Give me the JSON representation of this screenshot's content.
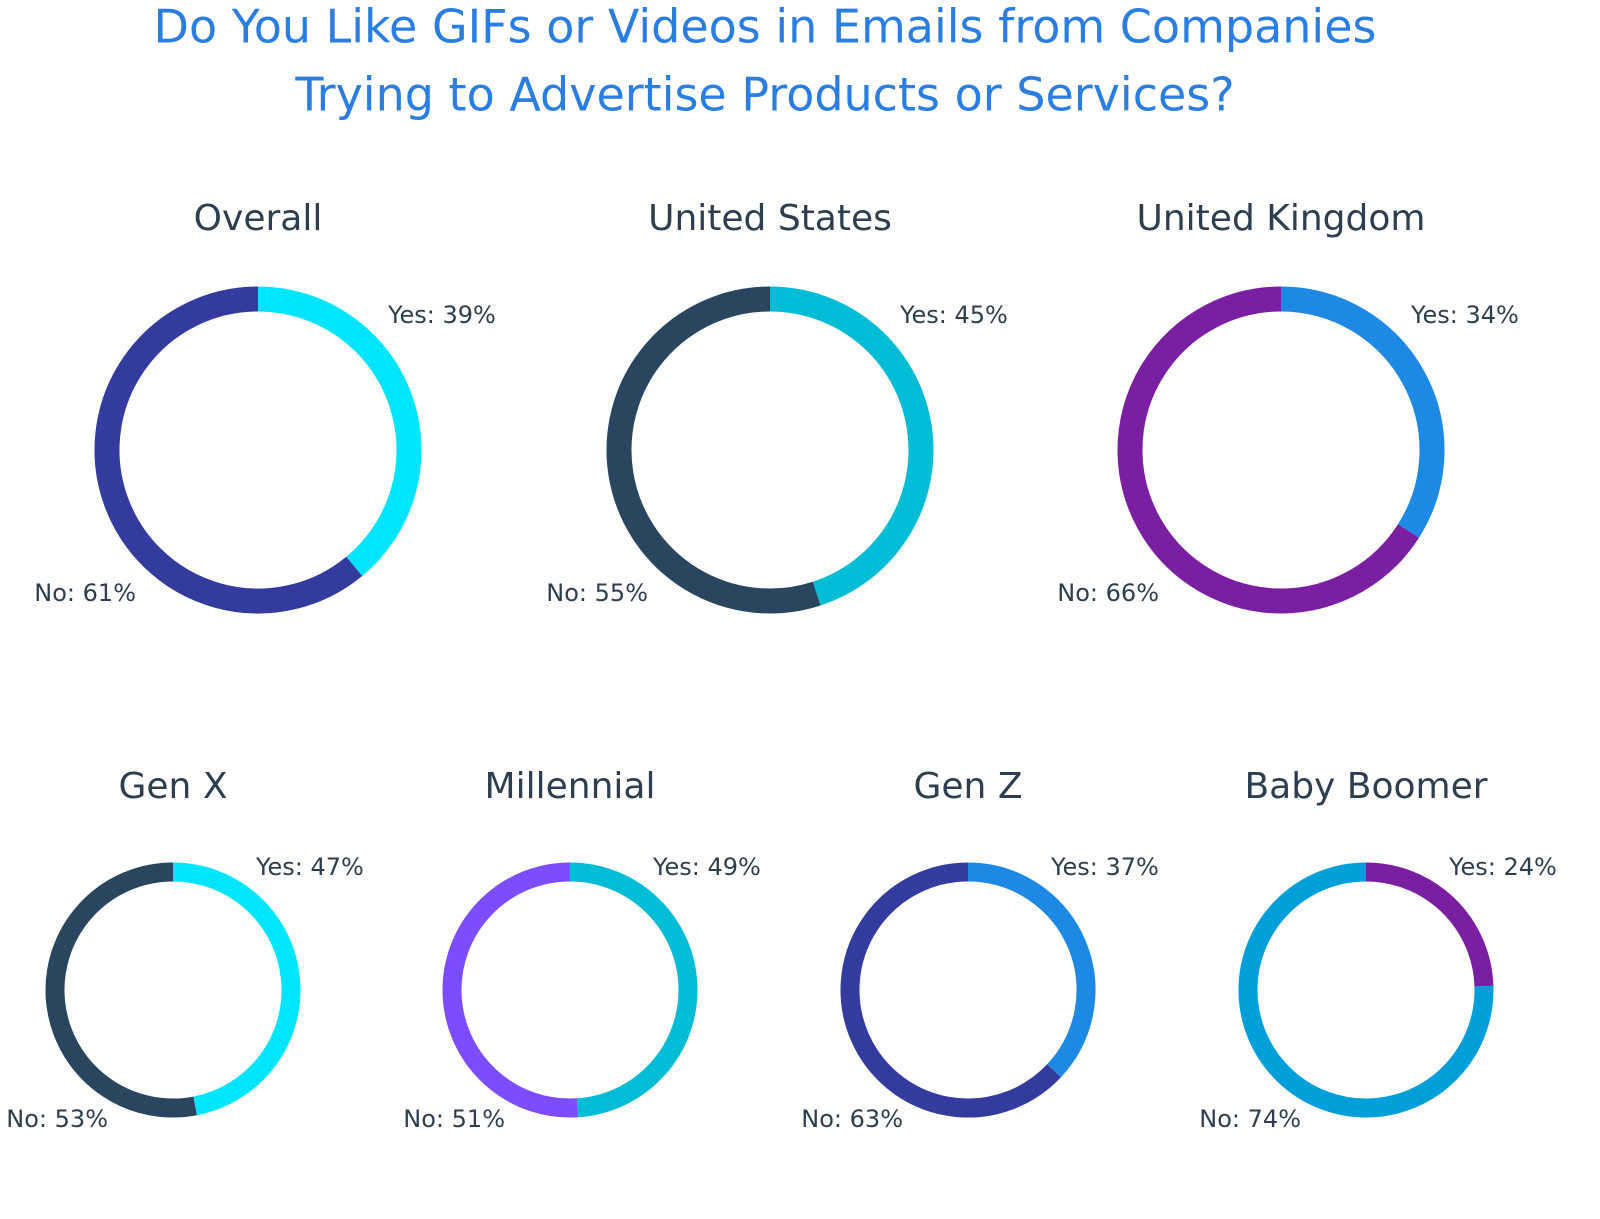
{
  "title": "Do You Like GIFs or Videos in Emails from Companies Trying to Advertise Products or Services?",
  "chart_data": [
    {
      "type": "donut",
      "title": "Overall",
      "values": [
        39,
        61
      ],
      "value_labels": [
        "Yes: 39%",
        "No: 61%"
      ],
      "colors": [
        "#00e5ff",
        "#333c9e"
      ]
    },
    {
      "type": "donut",
      "title": "United States",
      "values": [
        45,
        55
      ],
      "value_labels": [
        "Yes: 45%",
        "No: 55%"
      ],
      "colors": [
        "#00bcd4",
        "#2a4560"
      ]
    },
    {
      "type": "donut",
      "title": "United Kingdom",
      "values": [
        34,
        66
      ],
      "value_labels": [
        "Yes: 34%",
        "No: 66%"
      ],
      "colors": [
        "#1e88e5",
        "#7b1fa2"
      ]
    },
    {
      "type": "donut",
      "title": "Gen X",
      "values": [
        47,
        53
      ],
      "value_labels": [
        "Yes: 47%",
        "No: 53%"
      ],
      "colors": [
        "#00e5ff",
        "#2a4560"
      ]
    },
    {
      "type": "donut",
      "title": "Millennial",
      "values": [
        49,
        51
      ],
      "value_labels": [
        "Yes: 49%",
        "No: 51%"
      ],
      "colors": [
        "#00bcd4",
        "#7c4dff"
      ]
    },
    {
      "type": "donut",
      "title": "Gen Z",
      "values": [
        37,
        63
      ],
      "value_labels": [
        "Yes: 37%",
        "No: 63%"
      ],
      "colors": [
        "#1e88e5",
        "#333c9e"
      ]
    },
    {
      "type": "donut",
      "title": "Baby Boomer",
      "values": [
        24,
        74
      ],
      "value_labels": [
        "Yes: 24%",
        "No: 74%"
      ],
      "colors": [
        "#7b1fa2",
        "#009fd9"
      ]
    }
  ]
}
